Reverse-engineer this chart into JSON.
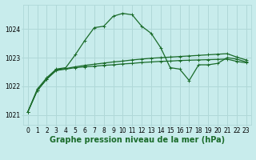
{
  "title": "Graphe pression niveau de la mer (hPa)",
  "background_color": "#c8ecec",
  "grid_color": "#b0d8d8",
  "line_color": "#1a6b2a",
  "xlim": [
    -0.5,
    23.5
  ],
  "ylim": [
    1020.65,
    1024.85
  ],
  "yticks": [
    1021,
    1022,
    1023,
    1024
  ],
  "xticks": [
    0,
    1,
    2,
    3,
    4,
    5,
    6,
    7,
    8,
    9,
    10,
    11,
    12,
    13,
    14,
    15,
    16,
    17,
    18,
    19,
    20,
    21,
    22,
    23
  ],
  "x": [
    0,
    1,
    2,
    3,
    4,
    5,
    6,
    7,
    8,
    9,
    10,
    11,
    12,
    13,
    14,
    15,
    16,
    17,
    18,
    19,
    20,
    21,
    22,
    23
  ],
  "line1": [
    1021.1,
    1021.9,
    1022.3,
    1022.6,
    1022.65,
    1023.1,
    1023.6,
    1024.05,
    1024.1,
    1024.45,
    1024.55,
    1024.5,
    1024.1,
    1023.85,
    1023.35,
    1022.65,
    1022.6,
    1022.2,
    1022.75,
    1022.75,
    1022.8,
    1023.0,
    1022.95,
    1022.85
  ],
  "line2": [
    1021.1,
    1021.85,
    1022.25,
    1022.55,
    1022.6,
    1022.65,
    1022.68,
    1022.7,
    1022.73,
    1022.75,
    1022.78,
    1022.8,
    1022.83,
    1022.85,
    1022.87,
    1022.88,
    1022.9,
    1022.91,
    1022.92,
    1022.93,
    1022.94,
    1022.95,
    1022.87,
    1022.82
  ],
  "line3": [
    1021.1,
    1021.85,
    1022.25,
    1022.58,
    1022.62,
    1022.68,
    1022.73,
    1022.77,
    1022.81,
    1022.85,
    1022.88,
    1022.92,
    1022.95,
    1022.98,
    1023.0,
    1023.02,
    1023.04,
    1023.06,
    1023.08,
    1023.1,
    1023.12,
    1023.14,
    1023.02,
    1022.92
  ],
  "tick_fontsize": 5.5,
  "title_fontsize": 7.0
}
